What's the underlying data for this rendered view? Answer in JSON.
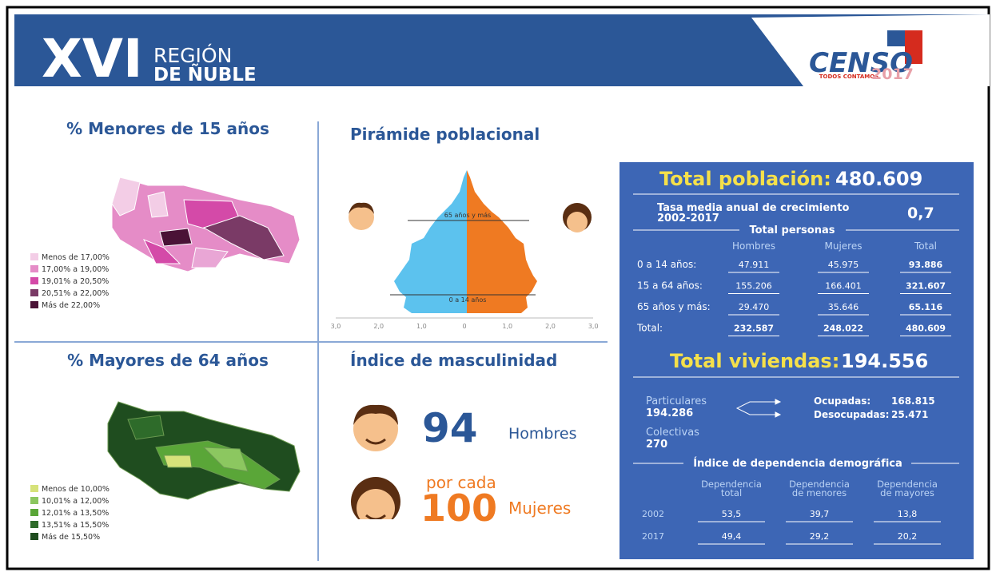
{
  "header": {
    "roman": "XVI",
    "region": "REGIÓN",
    "name": "DE ÑUBLE",
    "logo": "CENSO",
    "logo_tag": "TODOS CONTAMOS",
    "logo_year": "2017"
  },
  "maps": [
    {
      "title": "% Menores de 15 años",
      "legend": [
        "Menos de 17,00%",
        "17,00% a 19,00%",
        "19,01% a 20,50%",
        "20,51% a 22,00%",
        "Más de 22,00%"
      ]
    },
    {
      "title": "% Mayores de 64 años",
      "legend": [
        "Menos de 10,00%",
        "10,01% a 12,00%",
        "12,01% a 13,50%",
        "13,51% a 15,50%",
        "Más de 15,50%"
      ]
    }
  ],
  "pyramid": {
    "title": "Pirámide poblacional",
    "labels": [
      "65 años y más",
      "0 a 14 años"
    ],
    "axis": [
      "3,0",
      "2,0",
      "1,0",
      "0",
      "1,0",
      "2,0",
      "3,0"
    ]
  },
  "masculinity": {
    "title": "Índice de masculinidad",
    "men_value": "94",
    "men_label": "Hombres",
    "per": "por cada",
    "women_value": "100",
    "women_label": "Mujeres"
  },
  "panel": {
    "population_title": "Total población:",
    "population": "480.609",
    "growth_label": [
      "Tasa media anual de crecimiento",
      "2002-2017"
    ],
    "growth": "0,7",
    "persons_title": "Total personas",
    "columns": [
      "Hombres",
      "Mujeres",
      "Total"
    ],
    "rows": [
      [
        "0 a 14 años:",
        "47.911",
        "45.975",
        "93.886"
      ],
      [
        "15 a 64 años:",
        "155.206",
        "166.401",
        "321.607"
      ],
      [
        "65 años y más:",
        "29.470",
        "35.646",
        "65.116"
      ],
      [
        "Total:",
        "232.587",
        "248.022",
        "480.609"
      ]
    ],
    "housing_title": "Total viviendas:",
    "housing": "194.556",
    "particulares_label": "Particulares",
    "particulares": "194.286",
    "ocupadas_label": "Ocupadas:",
    "ocupadas": "168.815",
    "desocupadas_label": "Desocupadas:",
    "desocupadas": "25.471",
    "colectivas_label": "Colectivas",
    "colectivas": "270",
    "dependency_title": "Índice de dependencia demográfica",
    "dep_columns": [
      [
        "Dependencia",
        "total"
      ],
      [
        "Dependencia",
        "de menores"
      ],
      [
        "Dependencia",
        "de mayores"
      ]
    ],
    "dep_rows": [
      [
        "2002",
        "53,5",
        "39,7",
        "13,8"
      ],
      [
        "2017",
        "49,4",
        "29,2",
        "20,2"
      ]
    ]
  }
}
